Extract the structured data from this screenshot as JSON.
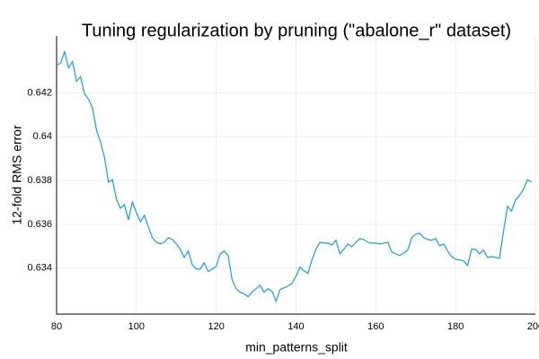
{
  "chart_data": {
    "type": "line",
    "title": "Tuning regularization by pruning (\"abalone_r\" dataset)",
    "xlabel": "min_patterns_split",
    "ylabel": "12-fold RMS error",
    "x": [
      80,
      81,
      82,
      83,
      84,
      85,
      86,
      87,
      88,
      89,
      90,
      91,
      92,
      93,
      94,
      95,
      96,
      97,
      98,
      99,
      100,
      101,
      102,
      103,
      104,
      105,
      106,
      107,
      108,
      109,
      110,
      111,
      112,
      113,
      114,
      115,
      116,
      117,
      118,
      119,
      120,
      121,
      122,
      123,
      124,
      125,
      126,
      127,
      128,
      129,
      130,
      131,
      132,
      133,
      134,
      135,
      136,
      137,
      138,
      139,
      140,
      141,
      142,
      143,
      144,
      145,
      146,
      147,
      148,
      149,
      150,
      151,
      152,
      153,
      154,
      155,
      156,
      157,
      158,
      159,
      160,
      161,
      162,
      163,
      164,
      165,
      166,
      167,
      168,
      169,
      170,
      171,
      172,
      173,
      174,
      175,
      176,
      177,
      178,
      179,
      180,
      181,
      182,
      183,
      184,
      185,
      186,
      187,
      188,
      189,
      190,
      191,
      192,
      193,
      194,
      195,
      196,
      197,
      198,
      199
    ],
    "series": [
      {
        "color": "#1a9be0",
        "values": [
          0.64327,
          0.64335,
          0.64388,
          0.64314,
          0.64343,
          0.64253,
          0.64273,
          0.64196,
          0.64171,
          0.64131,
          0.64029,
          0.63976,
          0.63906,
          0.63792,
          0.63804,
          0.63714,
          0.63673,
          0.6369,
          0.6362,
          0.63702,
          0.63653,
          0.63612,
          0.63641,
          0.63588,
          0.63539,
          0.63518,
          0.6351,
          0.63518,
          0.63539,
          0.63531,
          0.6351,
          0.63486,
          0.63449,
          0.63478,
          0.63416,
          0.63396,
          0.63396,
          0.63424,
          0.63384,
          0.63396,
          0.63408,
          0.63465,
          0.63478,
          0.63457,
          0.63347,
          0.63306,
          0.6329,
          0.63282,
          0.63269,
          0.6329,
          0.63306,
          0.63322,
          0.6329,
          0.63306,
          0.63294,
          0.63249,
          0.63302,
          0.6331,
          0.63318,
          0.63331,
          0.63363,
          0.63404,
          0.63388,
          0.63376,
          0.63437,
          0.63486,
          0.63518,
          0.63514,
          0.63514,
          0.63506,
          0.63527,
          0.63465,
          0.63486,
          0.6351,
          0.63498,
          0.63518,
          0.63535,
          0.63531,
          0.63518,
          0.63514,
          0.63514,
          0.6351,
          0.63514,
          0.63518,
          0.63473,
          0.63465,
          0.63457,
          0.63469,
          0.63482,
          0.63539,
          0.63555,
          0.63559,
          0.63539,
          0.63531,
          0.63527,
          0.63535,
          0.63502,
          0.6351,
          0.63478,
          0.63453,
          0.63441,
          0.63437,
          0.63433,
          0.63412,
          0.63486,
          0.63486,
          0.63465,
          0.63482,
          0.63449,
          0.63453,
          0.63449,
          0.63445,
          0.63567,
          0.63682,
          0.63661,
          0.6371,
          0.63731,
          0.63759,
          0.63804,
          0.63792
        ]
      }
    ],
    "xlim": [
      80,
      200
    ],
    "xticks": [
      80,
      100,
      120,
      140,
      160,
      180,
      200
    ],
    "ylim": [
      0.6319,
      0.6446
    ],
    "yticks": [
      0.634,
      0.636,
      0.638,
      0.64,
      0.642
    ],
    "grid": true
  }
}
